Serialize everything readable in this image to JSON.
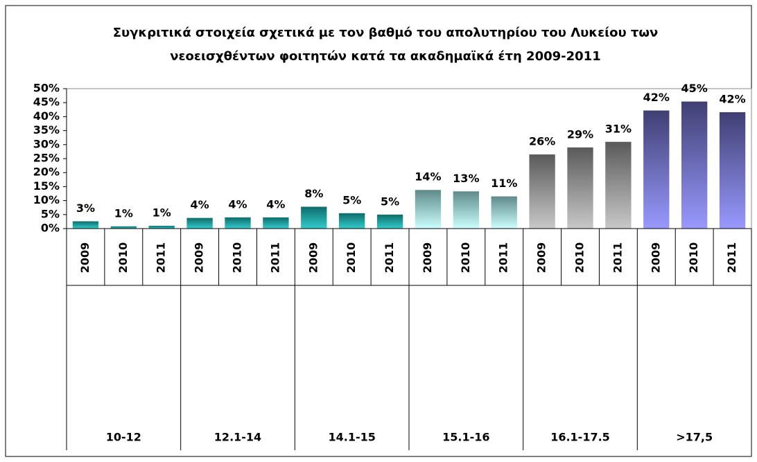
{
  "chart_data": {
    "type": "bar",
    "title": [
      "Συγκριτικά στοιχεία σχετικά με τον βαθμό του απολυτηρίου του Λυκείου των",
      "νεοεισχθέντων φοιτητών κατά τα ακαδημαϊκά έτη 2009-2011"
    ],
    "groups": [
      "10-12",
      "12.1-14",
      "14.1-15",
      "15.1-16",
      "16.1-17.5",
      ">17,5"
    ],
    "categories": [
      "2009",
      "2010",
      "2011",
      "2009",
      "2010",
      "2011",
      "2009",
      "2010",
      "2011",
      "2009",
      "2010",
      "2011",
      "2009",
      "2010",
      "2011",
      "2009",
      "2010",
      "2011"
    ],
    "values": [
      2.6,
      0.8,
      1.0,
      3.8,
      4.0,
      4.0,
      7.8,
      5.5,
      5.0,
      13.8,
      13.3,
      11.5,
      26.5,
      29.0,
      31.0,
      42.2,
      45.4,
      41.6
    ],
    "value_labels": [
      "3%",
      "1%",
      "1%",
      "4%",
      "4%",
      "4%",
      "8%",
      "5%",
      "5%",
      "14%",
      "13%",
      "11%",
      "26%",
      "29%",
      "31%",
      "42%",
      "45%",
      "42%"
    ],
    "group_colors": [
      {
        "top": "#0f6b6b",
        "bottom": "#33cccc"
      },
      {
        "top": "#0f6b6b",
        "bottom": "#33cccc"
      },
      {
        "top": "#0f6b6b",
        "bottom": "#33cccc"
      },
      {
        "top": "#5f8a8a",
        "bottom": "#ccffff"
      },
      {
        "top": "#5a5a5a",
        "bottom": "#c8c8c8"
      },
      {
        "top": "#3f3f73",
        "bottom": "#9999ff"
      }
    ],
    "ylim": [
      0,
      50
    ],
    "yticks": [
      {
        "value": 0,
        "label": "0%"
      },
      {
        "value": 5,
        "label": "5%"
      },
      {
        "value": 10,
        "label": "10%"
      },
      {
        "value": 15,
        "label": "15%"
      },
      {
        "value": 20,
        "label": "20%"
      },
      {
        "value": 25,
        "label": "25%"
      },
      {
        "value": 30,
        "label": "30%"
      },
      {
        "value": 35,
        "label": "35%"
      },
      {
        "value": 40,
        "label": "40%"
      },
      {
        "value": 45,
        "label": "45%"
      },
      {
        "value": 50,
        "label": "50%"
      }
    ]
  }
}
